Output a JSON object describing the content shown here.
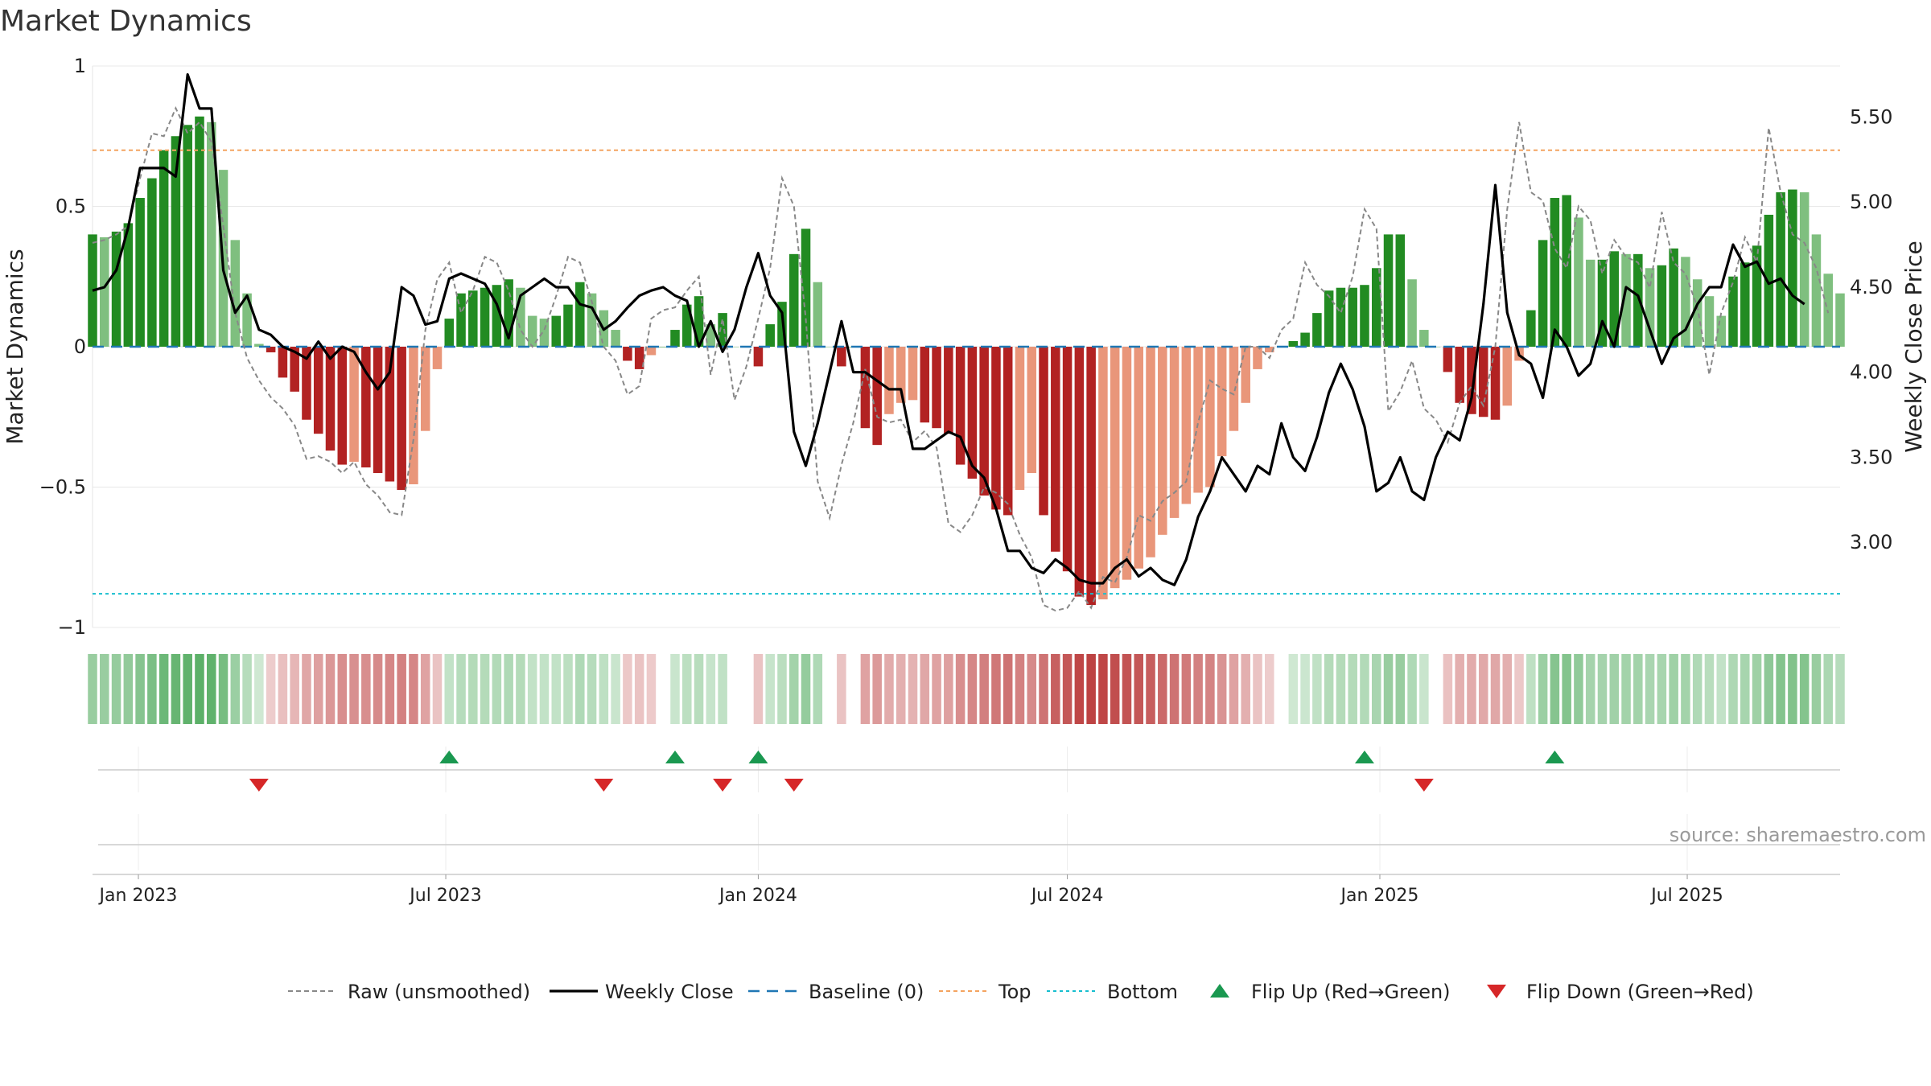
{
  "chart_data": {
    "type": "bar",
    "title": "Market Dynamics",
    "ylabel": "Market Dynamics",
    "y2label": "Weekly Close Price",
    "ylim": [
      -1.0,
      1.0
    ],
    "y2lim": [
      2.5,
      5.8
    ],
    "yticks": [
      1,
      0.5,
      0,
      -0.5,
      -1
    ],
    "ytick_labels": [
      "1",
      "0.5",
      "0",
      "−0.5",
      "−1"
    ],
    "y2ticks": [
      5.5,
      5.0,
      4.5,
      4.0,
      3.5,
      3.0
    ],
    "y2tick_labels": [
      "5.50",
      "5.00",
      "4.50",
      "4.00",
      "3.50",
      "3.00"
    ],
    "xlim": [
      "2022-12-05",
      "2025-09-29"
    ],
    "xticks": [
      "2023-01-01",
      "2023-07-01",
      "2024-01-01",
      "2024-07-01",
      "2025-01-01",
      "2025-07-01"
    ],
    "xtick_labels": [
      "Jan 2023",
      "Jul 2023",
      "Jan 2024",
      "Jul 2024",
      "Jan 2025",
      "Jul 2025"
    ],
    "first_week": "2022-12-05",
    "dates_note": "weekly series, one point per week starting at first_week",
    "top_line": 0.7,
    "bottom_line": -0.88,
    "colors": {
      "strong_green": "#228b22",
      "light_green": "#7fbf7f",
      "strong_red": "#b22222",
      "light_red": "#e9967a",
      "raw_line": "#888888",
      "close_line": "#000000",
      "baseline": "#1f77b4",
      "top": "#f4a460",
      "bottom": "#17becf",
      "flip_up": "#1a9850",
      "flip_down": "#d62728"
    },
    "series": [
      {
        "name": "Market Dynamics",
        "values": [
          0.4,
          0.39,
          0.41,
          0.44,
          0.53,
          0.6,
          0.7,
          0.75,
          0.79,
          0.82,
          0.8,
          0.63,
          0.38,
          0.19,
          0.01,
          -0.02,
          -0.11,
          -0.16,
          -0.26,
          -0.31,
          -0.37,
          -0.42,
          -0.41,
          -0.43,
          -0.45,
          -0.48,
          -0.51,
          -0.49,
          -0.3,
          -0.08,
          0.1,
          0.19,
          0.2,
          0.21,
          0.22,
          0.24,
          0.21,
          0.11,
          0.1,
          0.11,
          0.15,
          0.23,
          0.19,
          0.13,
          0.06,
          -0.05,
          -0.08,
          -0.03,
          0.0,
          0.06,
          0.15,
          0.18,
          0.08,
          0.12,
          0.0,
          0.0,
          -0.07,
          0.08,
          0.16,
          0.33,
          0.42,
          0.23,
          0.0,
          -0.07,
          0.0,
          -0.29,
          -0.35,
          -0.24,
          -0.2,
          -0.19,
          -0.27,
          -0.29,
          -0.31,
          -0.42,
          -0.47,
          -0.53,
          -0.58,
          -0.6,
          -0.51,
          -0.45,
          -0.6,
          -0.73,
          -0.8,
          -0.89,
          -0.92,
          -0.9,
          -0.86,
          -0.83,
          -0.79,
          -0.75,
          -0.67,
          -0.61,
          -0.56,
          -0.52,
          -0.5,
          -0.39,
          -0.3,
          -0.2,
          -0.08,
          -0.02,
          0.0,
          0.02,
          0.05,
          0.12,
          0.2,
          0.21,
          0.21,
          0.22,
          0.28,
          0.4,
          0.4,
          0.24,
          0.06,
          0.0,
          -0.09,
          -0.2,
          -0.24,
          -0.25,
          -0.26,
          -0.21,
          -0.05,
          0.13,
          0.38,
          0.53,
          0.54,
          0.46,
          0.31,
          0.31,
          0.34,
          0.33,
          0.33,
          0.28,
          0.29,
          0.35,
          0.32,
          0.24,
          0.18,
          0.11,
          0.25,
          0.3,
          0.36,
          0.47,
          0.55,
          0.56,
          0.55,
          0.4,
          0.26,
          0.19
        ]
      },
      {
        "name": "Raw (unsmoothed)",
        "values": [
          0.37,
          0.38,
          0.4,
          0.43,
          0.6,
          0.76,
          0.75,
          0.85,
          0.76,
          0.8,
          0.73,
          0.43,
          0.12,
          -0.04,
          -0.12,
          -0.18,
          -0.22,
          -0.28,
          -0.4,
          -0.39,
          -0.41,
          -0.45,
          -0.41,
          -0.49,
          -0.53,
          -0.59,
          -0.6,
          -0.33,
          0.06,
          0.24,
          0.3,
          0.12,
          0.2,
          0.32,
          0.3,
          0.2,
          0.06,
          0.0,
          0.06,
          0.18,
          0.32,
          0.3,
          0.16,
          0.0,
          -0.05,
          -0.17,
          -0.14,
          0.1,
          0.13,
          0.14,
          0.2,
          0.25,
          -0.1,
          0.1,
          -0.19,
          -0.07,
          0.1,
          0.28,
          0.6,
          0.5,
          0.1,
          -0.48,
          -0.61,
          -0.42,
          -0.27,
          -0.08,
          -0.25,
          -0.27,
          -0.26,
          -0.34,
          -0.3,
          -0.36,
          -0.63,
          -0.66,
          -0.6,
          -0.5,
          -0.52,
          -0.56,
          -0.67,
          -0.75,
          -0.92,
          -0.94,
          -0.93,
          -0.87,
          -0.93,
          -0.82,
          -0.84,
          -0.75,
          -0.6,
          -0.62,
          -0.55,
          -0.52,
          -0.48,
          -0.27,
          -0.12,
          -0.15,
          -0.17,
          0.0,
          0.0,
          -0.04,
          0.06,
          0.1,
          0.3,
          0.22,
          0.18,
          0.12,
          0.25,
          0.49,
          0.42,
          -0.23,
          -0.16,
          -0.05,
          -0.22,
          -0.26,
          -0.34,
          -0.2,
          -0.14,
          -0.21,
          0.0,
          0.49,
          0.8,
          0.55,
          0.52,
          0.35,
          0.28,
          0.5,
          0.45,
          0.26,
          0.38,
          0.32,
          0.3,
          0.21,
          0.48,
          0.3,
          0.26,
          0.14,
          -0.1,
          0.12,
          0.23,
          0.39,
          0.3,
          0.78,
          0.55,
          0.4,
          0.37,
          0.28,
          0.12
        ]
      },
      {
        "name": "Weekly Close",
        "values": [
          4.48,
          4.5,
          4.6,
          4.85,
          5.2,
          5.2,
          5.2,
          5.15,
          5.75,
          5.55,
          5.55,
          4.6,
          4.35,
          4.45,
          4.25,
          4.22,
          4.15,
          4.12,
          4.08,
          4.18,
          4.08,
          4.15,
          4.12,
          4.0,
          3.9,
          4.0,
          4.5,
          4.45,
          4.28,
          4.3,
          4.55,
          4.58,
          4.55,
          4.52,
          4.4,
          4.2,
          4.45,
          4.5,
          4.55,
          4.5,
          4.5,
          4.4,
          4.38,
          4.25,
          4.3,
          4.38,
          4.45,
          4.48,
          4.5,
          4.45,
          4.42,
          4.15,
          4.3,
          4.12,
          4.25,
          4.5,
          4.7,
          4.45,
          4.35,
          3.65,
          3.45,
          3.7,
          4.0,
          4.3,
          4.0,
          4.0,
          3.95,
          3.9,
          3.9,
          3.55,
          3.55,
          3.6,
          3.65,
          3.62,
          3.45,
          3.38,
          3.2,
          2.95,
          2.95,
          2.85,
          2.82,
          2.9,
          2.85,
          2.78,
          2.76,
          2.76,
          2.85,
          2.9,
          2.8,
          2.85,
          2.78,
          2.75,
          2.9,
          3.15,
          3.3,
          3.5,
          3.4,
          3.3,
          3.45,
          3.4,
          3.7,
          3.5,
          3.42,
          3.62,
          3.88,
          4.05,
          3.9,
          3.68,
          3.3,
          3.35,
          3.5,
          3.3,
          3.25,
          3.5,
          3.65,
          3.6,
          3.85,
          4.4,
          5.1,
          4.35,
          4.1,
          4.05,
          3.85,
          4.25,
          4.15,
          3.98,
          4.05,
          4.3,
          4.15,
          4.5,
          4.45,
          4.25,
          4.05,
          4.2,
          4.25,
          4.4,
          4.5,
          4.5,
          4.75,
          4.62,
          4.65,
          4.52,
          4.55,
          4.45,
          4.4
        ]
      }
    ],
    "flip_up_weeks": [
      30,
      49,
      56,
      107,
      123
    ],
    "flip_down_weeks": [
      14,
      43,
      53,
      59,
      112
    ],
    "legend": [
      "Raw (unsmoothed)",
      "Weekly Close",
      "Baseline (0)",
      "Top",
      "Bottom",
      "Flip Up (Red→Green)",
      "Flip Down (Green→Red)"
    ],
    "legend_placement": "bottom-center",
    "grid": true
  },
  "source_text": "source: sharemaestro.com"
}
